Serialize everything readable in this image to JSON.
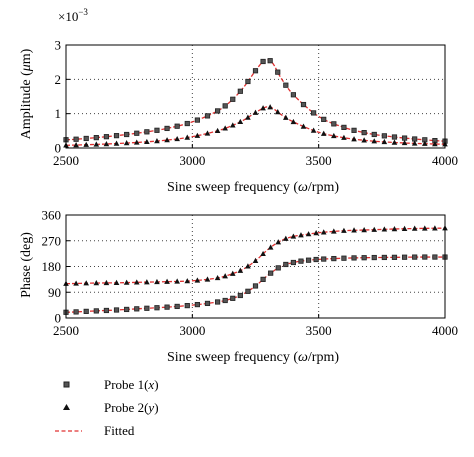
{
  "chart_data": [
    {
      "type": "line",
      "xlabel_prefix": "Sine sweep frequency (",
      "xlabel_symbol": "ω",
      "xlabel_suffix": "/rpm)",
      "ylabel_prefix": "Amplitude (",
      "ylabel_symbol": "μ",
      "ylabel_suffix": "m)",
      "y_multiplier_base": "×10",
      "y_multiplier_exp": "−3",
      "xlim": [
        2500,
        4000
      ],
      "ylim": [
        0,
        3
      ],
      "x_ticks": [
        2500,
        3000,
        3500,
        4000
      ],
      "y_ticks": [
        0,
        1,
        2,
        3
      ],
      "grid": "dotted",
      "series": [
        {
          "name": "Probe 1(x)",
          "marker": "square",
          "x": [
            2500,
            2600,
            2700,
            2800,
            2900,
            3000,
            3100,
            3150,
            3200,
            3250,
            3280,
            3300,
            3320,
            3350,
            3400,
            3500,
            3600,
            3700,
            3800,
            3900,
            4000
          ],
          "y": [
            0.24,
            0.29,
            0.36,
            0.45,
            0.57,
            0.76,
            1.08,
            1.35,
            1.74,
            2.25,
            2.52,
            2.57,
            2.45,
            2.05,
            1.55,
            0.92,
            0.6,
            0.42,
            0.32,
            0.25,
            0.2
          ]
        },
        {
          "name": "Probe 2(y)",
          "marker": "triangle",
          "x": [
            2500,
            2600,
            2700,
            2800,
            2900,
            3000,
            3100,
            3150,
            3200,
            3250,
            3280,
            3300,
            3320,
            3350,
            3400,
            3500,
            3600,
            3700,
            3800,
            3900,
            4000
          ],
          "y": [
            0.08,
            0.1,
            0.13,
            0.17,
            0.23,
            0.33,
            0.5,
            0.63,
            0.8,
            1.03,
            1.16,
            1.2,
            1.15,
            0.98,
            0.76,
            0.46,
            0.3,
            0.21,
            0.16,
            0.13,
            0.11
          ]
        }
      ]
    },
    {
      "type": "line",
      "xlabel_prefix": "Sine sweep frequency (",
      "xlabel_symbol": "ω",
      "xlabel_suffix": "/rpm)",
      "ylabel": "Phase (deg)",
      "xlim": [
        2500,
        4000
      ],
      "ylim": [
        0,
        360
      ],
      "x_ticks": [
        2500,
        3000,
        3500,
        4000
      ],
      "y_ticks": [
        0,
        90,
        180,
        270,
        360
      ],
      "grid": "dotted",
      "series": [
        {
          "name": "Probe 1(x)",
          "marker": "square",
          "x": [
            2500,
            2600,
            2700,
            2800,
            2900,
            3000,
            3100,
            3150,
            3200,
            3250,
            3300,
            3350,
            3400,
            3450,
            3500,
            3600,
            3700,
            3800,
            3900,
            4000
          ],
          "y": [
            20,
            24,
            28,
            33,
            38,
            45,
            56,
            66,
            83,
            112,
            150,
            180,
            194,
            201,
            205,
            209,
            211,
            212,
            213,
            213
          ]
        },
        {
          "name": "Probe 2(y)",
          "marker": "triangle",
          "x": [
            2500,
            2600,
            2700,
            2800,
            2900,
            3000,
            3100,
            3150,
            3200,
            3250,
            3300,
            3350,
            3400,
            3450,
            3500,
            3600,
            3700,
            3800,
            3900,
            4000
          ],
          "y": [
            120,
            122,
            123,
            125,
            127,
            130,
            140,
            152,
            170,
            200,
            240,
            270,
            285,
            292,
            298,
            305,
            308,
            311,
            313,
            314
          ]
        }
      ]
    }
  ],
  "legend": {
    "items": [
      {
        "prefix": "Probe 1(",
        "var": "x",
        "suffix": ")",
        "marker": "square",
        "color": "#333333"
      },
      {
        "prefix": "Probe 2(",
        "var": "y",
        "suffix": ")",
        "marker": "triangle",
        "color": "#000000"
      },
      {
        "prefix": "Fitted",
        "var": "",
        "suffix": "",
        "marker": "dashed-line",
        "color": "#e03030"
      }
    ]
  },
  "colors": {
    "fitted": "#e03030",
    "marker_fill": "#555555",
    "marker_edge": "#222222",
    "axis": "#000000",
    "grid": "#444444"
  }
}
